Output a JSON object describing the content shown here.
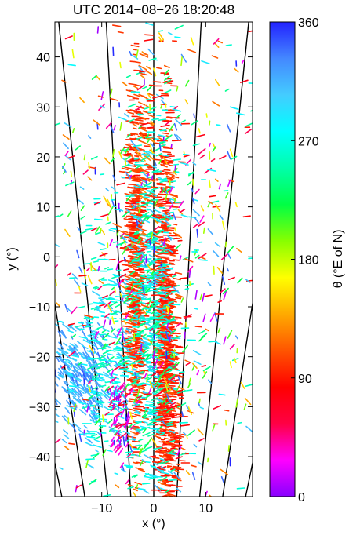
{
  "chart_data": {
    "type": "scatter",
    "title": "UTC 2014−08−26 18:20:48",
    "xlabel": "x (°)",
    "ylabel": "y (°)",
    "xlim": [
      -19,
      19
    ],
    "ylim": [
      -48,
      47
    ],
    "xticks": [
      -10,
      0,
      10
    ],
    "xtick_labels": [
      "−10",
      "0",
      "10"
    ],
    "yticks": [
      40,
      30,
      20,
      10,
      0,
      -10,
      -20,
      -30,
      -40
    ],
    "ytick_labels": [
      "40",
      "30",
      "20",
      "10",
      "0",
      "−10",
      "−20",
      "−30",
      "−40"
    ],
    "grid": false,
    "colorbar": {
      "label": "θ (°E of N)",
      "range": [
        0,
        360
      ],
      "ticks": [
        0,
        90,
        180,
        270,
        360
      ],
      "tick_labels": [
        "0",
        "90",
        "180",
        "270",
        "360"
      ],
      "colormap": [
        "#8800ff",
        "#ff00ff",
        "#ff0044",
        "#ff0000",
        "#ff5500",
        "#ffaa00",
        "#ffff00",
        "#88ff00",
        "#00ff44",
        "#00ffaa",
        "#00ffff",
        "#44ccff",
        "#4488ff",
        "#2222ff"
      ]
    },
    "series": [
      {
        "clusters": [
          {
            "x": -3.5,
            "y": -3,
            "sx": 0.8,
            "sy": 19,
            "theta": 100,
            "dtheta": 8,
            "n": 650
          },
          {
            "x": 2.2,
            "y": -12,
            "sx": 0.9,
            "sy": 21,
            "theta": 95,
            "dtheta": 8,
            "n": 800
          },
          {
            "x": 3.2,
            "y": -28,
            "sx": 1.5,
            "sy": 12,
            "theta": 95,
            "dtheta": 10,
            "n": 220
          },
          {
            "x": -1.5,
            "y": 22,
            "sx": 0.8,
            "sy": 10,
            "theta": 110,
            "dtheta": 15,
            "n": 90
          },
          {
            "x": -14,
            "y": -24,
            "sx": 3,
            "sy": 5,
            "theta": 315,
            "dtheta": 15,
            "n": 320
          },
          {
            "x": -9,
            "y": -22,
            "sx": 2.5,
            "sy": 12,
            "theta": 275,
            "dtheta": 20,
            "n": 240
          },
          {
            "x": -0.5,
            "y": -12,
            "sx": 2.5,
            "sy": 22,
            "theta": 265,
            "dtheta": 25,
            "n": 650
          },
          {
            "x": -6.5,
            "y": -33,
            "sx": 1.2,
            "sy": 4,
            "theta": 30,
            "dtheta": 25,
            "n": 70
          },
          {
            "x": 0,
            "y": 0,
            "sx": 11,
            "sy": 28,
            "theta": 180,
            "dtheta": 180,
            "n": 850
          }
        ]
      }
    ]
  }
}
